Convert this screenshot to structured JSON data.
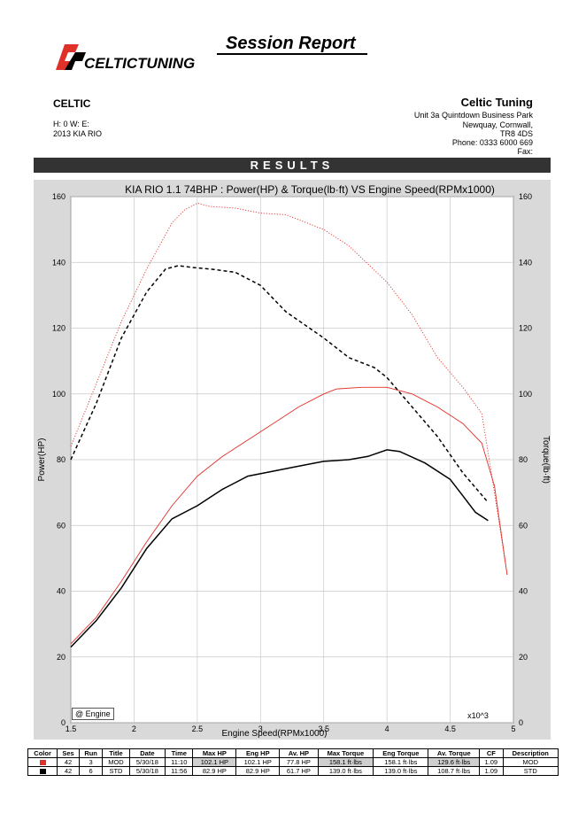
{
  "header": {
    "report_title": "Session Report",
    "logo_text": "CELTICTUNING",
    "customer_name": "CELTIC",
    "hw_line": "H:  0    W:      E:",
    "vehicle": "2013 KIA RIO",
    "company_name": "Celtic Tuning",
    "address_1": "Unit 3a Quintdown Business Park",
    "address_2": "Newquay, Cornwall,",
    "address_3": "TR8 4DS",
    "phone": "Phone: 0333 6000 669",
    "fax": "Fax:",
    "results_label": "RESULTS"
  },
  "colors": {
    "mod": "#e0302a",
    "std": "#000000",
    "frame": "#d9d9d9"
  },
  "chart_data": {
    "type": "line",
    "title": "KIA RIO 1.1 74BHP : Power(HP) & Torque(lb·ft) VS Engine Speed(RPMx1000)",
    "xlabel": "Engine Speed(RPMx1000)",
    "ylabel_left": "Power(HP)",
    "ylabel_right": "Torque(lb·ft)",
    "x_multiplier_label": "x10^3",
    "xlim": [
      1.5,
      5
    ],
    "ylim": [
      0,
      160
    ],
    "x_ticks": [
      "1.5",
      "2",
      "2.5",
      "3",
      "3.5",
      "4",
      "4.5",
      "5"
    ],
    "y_ticks": [
      "0",
      "20",
      "40",
      "60",
      "80",
      "100",
      "120",
      "140",
      "160"
    ],
    "grid": true,
    "legend_label": "@ Engine",
    "series": [
      {
        "name": "MOD",
        "measure": "power",
        "style": "solid",
        "color": "#e0302a",
        "x": [
          1.5,
          1.7,
          1.9,
          2.1,
          2.3,
          2.5,
          2.7,
          2.9,
          3.1,
          3.3,
          3.5,
          3.6,
          3.8,
          4.0,
          4.2,
          4.4,
          4.6,
          4.75,
          4.85,
          4.95
        ],
        "y": [
          24,
          32,
          43,
          55,
          66,
          75,
          81,
          86,
          91,
          96,
          100,
          101.5,
          102,
          102,
          100,
          96,
          91,
          85,
          72,
          45
        ]
      },
      {
        "name": "MOD",
        "measure": "torque",
        "style": "dotted",
        "color": "#e0302a",
        "x": [
          1.5,
          1.7,
          1.9,
          2.1,
          2.3,
          2.4,
          2.5,
          2.6,
          2.8,
          3.0,
          3.2,
          3.5,
          3.7,
          4.0,
          4.2,
          4.4,
          4.6,
          4.75,
          4.85,
          4.95
        ],
        "y": [
          84,
          103,
          122,
          138,
          152,
          156,
          158,
          157,
          156.5,
          155,
          154.5,
          150,
          145,
          134,
          124,
          111,
          102,
          94,
          70,
          45
        ]
      },
      {
        "name": "STD",
        "measure": "power",
        "style": "solid",
        "color": "#000000",
        "x": [
          1.5,
          1.7,
          1.9,
          2.1,
          2.3,
          2.5,
          2.7,
          2.9,
          3.1,
          3.3,
          3.5,
          3.7,
          3.85,
          4.0,
          4.1,
          4.3,
          4.5,
          4.6,
          4.7,
          4.8
        ],
        "y": [
          23,
          31,
          41,
          53,
          62,
          66,
          71,
          75,
          76.5,
          78,
          79.5,
          80,
          81,
          83,
          82.5,
          79,
          74,
          69,
          64,
          61.5
        ]
      },
      {
        "name": "STD",
        "measure": "torque",
        "style": "dashed",
        "color": "#000000",
        "x": [
          1.5,
          1.7,
          1.9,
          2.1,
          2.25,
          2.35,
          2.45,
          2.6,
          2.8,
          3.0,
          3.2,
          3.5,
          3.7,
          3.9,
          4.0,
          4.2,
          4.4,
          4.6,
          4.8
        ],
        "y": [
          80,
          97,
          117,
          131,
          138,
          139,
          138.5,
          138,
          137,
          133,
          125,
          117,
          111,
          108,
          105,
          96,
          87,
          76,
          67
        ]
      }
    ]
  },
  "run_table": {
    "headers": [
      "Color",
      "Ses",
      "Run",
      "Title",
      "Date",
      "Time",
      "Max HP",
      "Eng HP",
      "Av. HP",
      "Max Torque",
      "Eng Torque",
      "Av. Torque",
      "CF",
      "Description"
    ],
    "rows": [
      {
        "color": "#e0302a",
        "ses": "42",
        "run": "3",
        "title": "MOD",
        "date": "5/30/18",
        "time": "11:10",
        "max_hp": "102.1 HP",
        "eng_hp": "102.1 HP",
        "av_hp": "77.8 HP",
        "max_torque": "158.1 ft·lbs",
        "eng_torque": "158.1 ft·lbs",
        "av_torque": "129.6 ft·lbs",
        "cf": "1.09",
        "description": "MOD"
      },
      {
        "color": "#000000",
        "ses": "42",
        "run": "6",
        "title": "STD",
        "date": "5/30/18",
        "time": "11:56",
        "max_hp": "82.9 HP",
        "eng_hp": "82.9 HP",
        "av_hp": "61.7 HP",
        "max_torque": "139.0 ft·lbs",
        "eng_torque": "139.0 ft·lbs",
        "av_torque": "108.7 ft·lbs",
        "cf": "1.09",
        "description": "STD"
      }
    ]
  }
}
